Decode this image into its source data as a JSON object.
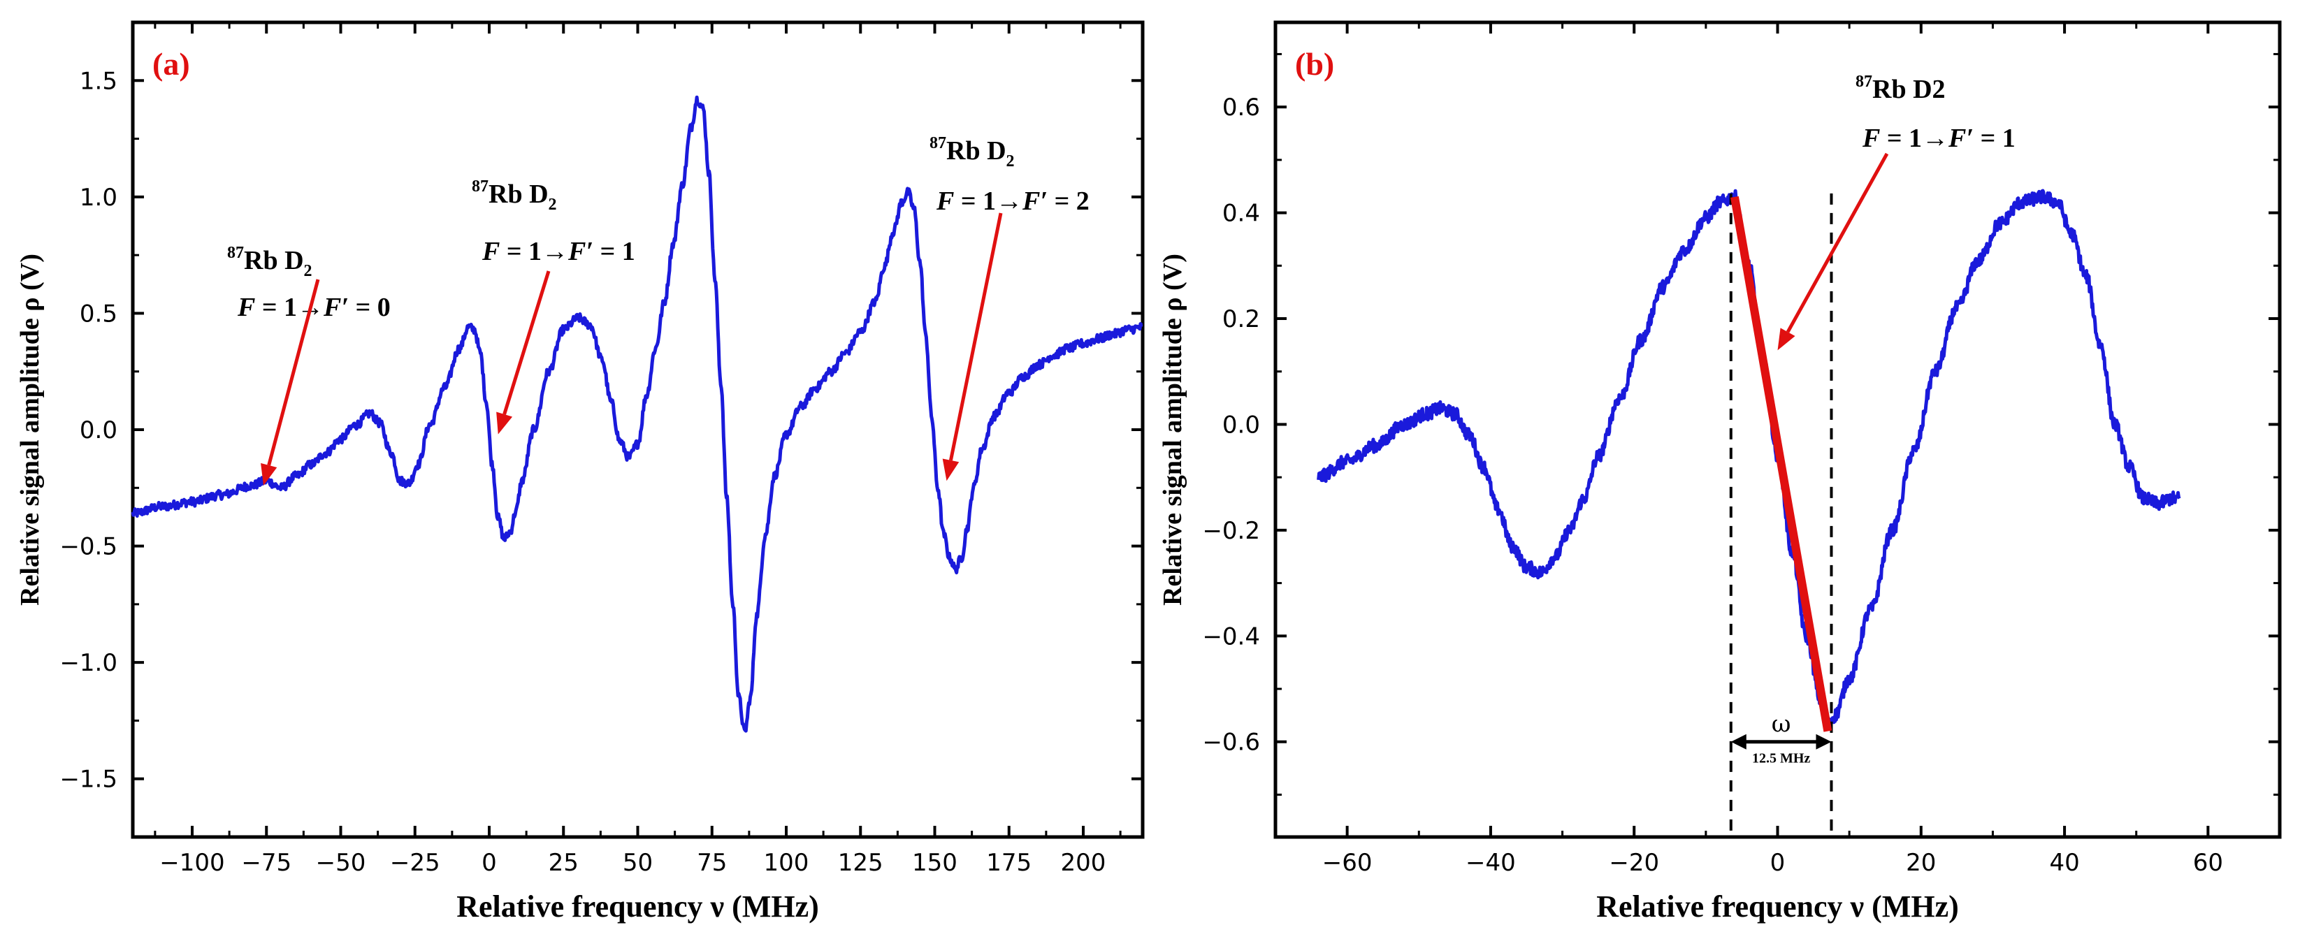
{
  "chart_data": [
    {
      "type": "line",
      "panel_label": "(a)",
      "xlabel": "Relative frequency ν (MHz)",
      "ylabel": "Relative signal amplitude ρ (V)",
      "xlim": [
        -120,
        220
      ],
      "ylim": [
        -1.75,
        1.75
      ],
      "x_ticks": [
        -100,
        -75,
        -50,
        -25,
        0,
        25,
        50,
        75,
        100,
        125,
        150,
        175,
        200
      ],
      "x_tick_labels": [
        "−100",
        "−75",
        "−50",
        "−25",
        "0",
        "25",
        "50",
        "75",
        "100",
        "125",
        "150",
        "175",
        "200"
      ],
      "y_ticks": [
        -1.5,
        -1.0,
        -0.5,
        0.0,
        0.5,
        1.0,
        1.5
      ],
      "y_tick_labels": [
        "−1.5",
        "−1.0",
        "−0.5",
        "0.0",
        "0.5",
        "1.0",
        "1.5"
      ],
      "series": [
        {
          "name": "signal",
          "color": "#1a1adb",
          "x": [
            -120,
            -110,
            -100,
            -90,
            -80,
            -75,
            -70,
            -65,
            -60,
            -55,
            -50,
            -45,
            -40,
            -37,
            -33,
            -30,
            -27,
            -24,
            -20,
            -15,
            -10,
            -7,
            -5,
            -3,
            -1,
            1,
            3,
            5,
            7,
            9,
            11,
            15,
            20,
            25,
            30,
            34,
            38,
            41,
            44,
            47,
            50,
            53,
            56,
            59,
            62,
            65,
            68,
            70,
            72,
            74,
            76,
            78,
            80,
            82,
            84,
            86,
            88,
            90,
            93,
            96,
            100,
            105,
            110,
            115,
            120,
            125,
            130,
            133,
            136,
            139,
            141,
            143,
            145,
            147,
            149,
            151,
            153,
            155,
            157,
            159,
            161,
            163,
            166,
            170,
            175,
            180,
            185,
            190,
            195,
            200,
            205,
            210,
            215,
            220
          ],
          "y": [
            -0.36,
            -0.33,
            -0.31,
            -0.28,
            -0.24,
            -0.22,
            -0.25,
            -0.2,
            -0.15,
            -0.1,
            -0.04,
            0.02,
            0.07,
            0.03,
            -0.1,
            -0.22,
            -0.23,
            -0.15,
            0.02,
            0.18,
            0.35,
            0.44,
            0.43,
            0.33,
            0.12,
            -0.15,
            -0.38,
            -0.47,
            -0.44,
            -0.35,
            -0.22,
            0.0,
            0.25,
            0.43,
            0.48,
            0.45,
            0.3,
            0.12,
            -0.05,
            -0.12,
            -0.06,
            0.15,
            0.35,
            0.55,
            0.8,
            1.05,
            1.3,
            1.42,
            1.38,
            1.1,
            0.65,
            0.2,
            -0.3,
            -0.75,
            -1.15,
            -1.3,
            -1.15,
            -0.8,
            -0.45,
            -0.2,
            -0.02,
            0.1,
            0.18,
            0.25,
            0.33,
            0.42,
            0.55,
            0.7,
            0.85,
            0.98,
            1.02,
            0.95,
            0.72,
            0.4,
            0.05,
            -0.25,
            -0.45,
            -0.55,
            -0.6,
            -0.55,
            -0.42,
            -0.25,
            -0.08,
            0.06,
            0.16,
            0.23,
            0.28,
            0.32,
            0.35,
            0.37,
            0.39,
            0.41,
            0.43,
            0.44
          ]
        }
      ],
      "annotations": [
        {
          "isotope": "87",
          "label": "Rb D",
          "sub": "2",
          "pre": "F = 1→",
          "italic": "F′",
          "post": " = 0",
          "target": [
            -76,
            -0.24
          ]
        },
        {
          "isotope": "87",
          "label": "Rb D",
          "sub": "2",
          "pre": "F = 1→",
          "italic": "F′",
          "post": " = 1",
          "target": [
            3,
            -0.02
          ]
        },
        {
          "isotope": "87",
          "label": "Rb D",
          "sub": "2",
          "pre": "F = 1→",
          "italic": "F′",
          "post": " = 2",
          "target": [
            154,
            -0.22
          ]
        }
      ]
    },
    {
      "type": "line",
      "panel_label": "(b)",
      "xlabel": "Relative frequency ν (MHz)",
      "ylabel": "Relative signal amplitude ρ (V)",
      "xlim": [
        -70,
        70
      ],
      "ylim": [
        -0.78,
        0.76
      ],
      "x_ticks": [
        -60,
        -40,
        -20,
        0,
        20,
        40,
        60
      ],
      "x_tick_labels": [
        "−60",
        "−40",
        "−20",
        "0",
        "20",
        "40",
        "60"
      ],
      "y_ticks": [
        -0.6,
        -0.4,
        -0.2,
        0.0,
        0.2,
        0.4,
        0.6
      ],
      "y_tick_labels": [
        "−0.6",
        "−0.4",
        "−0.2",
        "0.0",
        "0.2",
        "0.4",
        "0.6"
      ],
      "series": [
        {
          "name": "signal",
          "color": "#1a1adb",
          "x": [
            -64,
            -60,
            -56,
            -52,
            -49,
            -47,
            -45,
            -43,
            -41,
            -39,
            -37,
            -35,
            -33,
            -31,
            -29,
            -27,
            -25,
            -22,
            -19,
            -16,
            -13,
            -10,
            -8,
            -6,
            -4,
            -2,
            0,
            2,
            4,
            6,
            7,
            8,
            10,
            13,
            16,
            19,
            22,
            25,
            28,
            31,
            34,
            37,
            39,
            41,
            43,
            45,
            47,
            49,
            51,
            53,
            55,
            56
          ],
          "y": [
            -0.1,
            -0.07,
            -0.04,
            0.0,
            0.02,
            0.03,
            0.02,
            -0.02,
            -0.08,
            -0.16,
            -0.23,
            -0.27,
            -0.28,
            -0.25,
            -0.2,
            -0.14,
            -0.06,
            0.05,
            0.16,
            0.26,
            0.33,
            0.39,
            0.42,
            0.43,
            0.3,
            0.12,
            -0.06,
            -0.24,
            -0.4,
            -0.52,
            -0.57,
            -0.55,
            -0.48,
            -0.35,
            -0.2,
            -0.05,
            0.1,
            0.22,
            0.31,
            0.38,
            0.42,
            0.43,
            0.42,
            0.36,
            0.28,
            0.15,
            0.0,
            -0.08,
            -0.14,
            -0.15,
            -0.14,
            -0.14
          ]
        }
      ],
      "fit_line": {
        "color": "#e01010",
        "x": [
          -6,
          7
        ],
        "y": [
          0.43,
          -0.58
        ]
      },
      "width_marker": {
        "x": [
          -6.5,
          7.5
        ],
        "symbol": "ω",
        "label": "12.5 MHz"
      },
      "annotations": [
        {
          "isotope": "87",
          "label": "Rb D2",
          "pre": "F = 1→",
          "italic": "F′",
          "post": " = 1",
          "target": [
            0,
            0.14
          ]
        }
      ]
    }
  ]
}
